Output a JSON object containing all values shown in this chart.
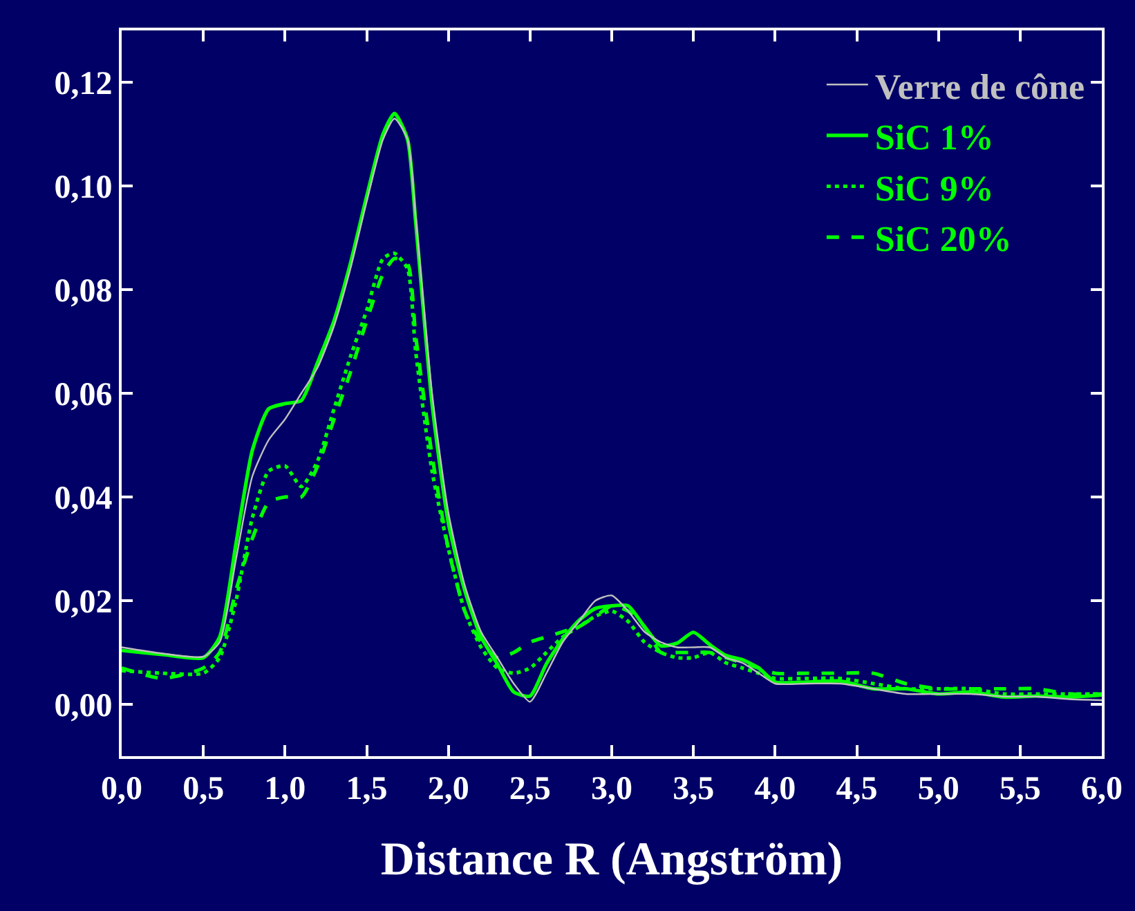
{
  "chart_data": {
    "type": "line",
    "xlabel": "Distance R (Angström)",
    "xlim": [
      0,
      6
    ],
    "ylim": [
      -0.01,
      0.13
    ],
    "xticks": [
      {
        "value": 0,
        "label": "0,0"
      },
      {
        "value": 0.5,
        "label": "0,5"
      },
      {
        "value": 1,
        "label": "1,0"
      },
      {
        "value": 1.5,
        "label": "1,5"
      },
      {
        "value": 2,
        "label": "2,0"
      },
      {
        "value": 2.5,
        "label": "2,5"
      },
      {
        "value": 3,
        "label": "3,0"
      },
      {
        "value": 3.5,
        "label": "3,5"
      },
      {
        "value": 4,
        "label": "4,0"
      },
      {
        "value": 4.5,
        "label": "4,5"
      },
      {
        "value": 5,
        "label": "5,0"
      },
      {
        "value": 5.5,
        "label": "5,5"
      },
      {
        "value": 6,
        "label": "6,0"
      }
    ],
    "yticks": [
      {
        "value": 0,
        "label": "0,00"
      },
      {
        "value": 0.02,
        "label": "0,02"
      },
      {
        "value": 0.04,
        "label": "0,04"
      },
      {
        "value": 0.06,
        "label": "0,06"
      },
      {
        "value": 0.08,
        "label": "0,08"
      },
      {
        "value": 0.1,
        "label": "0,10"
      },
      {
        "value": 0.12,
        "label": "0,12"
      }
    ],
    "grid": false,
    "legend": "top right",
    "marker": "none",
    "x": [
      0,
      0.25,
      0.5,
      0.6,
      0.7,
      0.8,
      0.9,
      1.0,
      1.1,
      1.2,
      1.3,
      1.4,
      1.5,
      1.6,
      1.67,
      1.75,
      1.8,
      1.9,
      2.0,
      2.1,
      2.2,
      2.3,
      2.4,
      2.5,
      2.6,
      2.7,
      2.8,
      2.9,
      3.0,
      3.1,
      3.2,
      3.3,
      3.4,
      3.5,
      3.6,
      3.7,
      3.8,
      3.9,
      4.0,
      4.2,
      4.4,
      4.6,
      4.8,
      5.0,
      5.2,
      5.4,
      5.6,
      5.8,
      6.0
    ],
    "series": [
      {
        "name": "Verre de cône",
        "color": "#c0c0c0",
        "line_style": "solid",
        "values": [
          0.011,
          0.0098,
          0.0092,
          0.012,
          0.028,
          0.044,
          0.051,
          0.055,
          0.06,
          0.065,
          0.073,
          0.084,
          0.097,
          0.109,
          0.113,
          0.109,
          0.094,
          0.06,
          0.037,
          0.023,
          0.014,
          0.009,
          0.004,
          0.0005,
          0.006,
          0.012,
          0.016,
          0.02,
          0.021,
          0.018,
          0.014,
          0.012,
          0.011,
          0.011,
          0.011,
          0.009,
          0.008,
          0.006,
          0.004,
          0.004,
          0.004,
          0.003,
          0.002,
          0.002,
          0.002,
          0.0015,
          0.0015,
          0.001,
          0.0008
        ]
      },
      {
        "name": "SiC 1%",
        "color": "#00ff00",
        "line_style": "solid",
        "values": [
          0.0104,
          0.0096,
          0.009,
          0.013,
          0.031,
          0.049,
          0.057,
          0.058,
          0.0586,
          0.066,
          0.074,
          0.085,
          0.098,
          0.11,
          0.114,
          0.109,
          0.093,
          0.058,
          0.035,
          0.022,
          0.013,
          0.0078,
          0.0024,
          0.0016,
          0.0078,
          0.0126,
          0.0162,
          0.0185,
          0.019,
          0.019,
          0.015,
          0.0113,
          0.0118,
          0.0139,
          0.0115,
          0.0094,
          0.0086,
          0.007,
          0.0043,
          0.0043,
          0.0045,
          0.003,
          0.003,
          0.002,
          0.0024,
          0.0014,
          0.0016,
          0.0014,
          0.0018
        ]
      },
      {
        "name": "SiC 9%",
        "color": "#00ff00",
        "line_style": "dotted",
        "values": [
          0.0065,
          0.006,
          0.006,
          0.009,
          0.02,
          0.036,
          0.045,
          0.046,
          0.042,
          0.047,
          0.057,
          0.067,
          0.076,
          0.086,
          0.087,
          0.084,
          0.068,
          0.045,
          0.03,
          0.018,
          0.011,
          0.007,
          0.006,
          0.007,
          0.01,
          0.013,
          0.015,
          0.017,
          0.018,
          0.016,
          0.012,
          0.01,
          0.009,
          0.009,
          0.01,
          0.008,
          0.007,
          0.006,
          0.005,
          0.005,
          0.005,
          0.004,
          0.003,
          0.003,
          0.003,
          0.002,
          0.002,
          0.002,
          0.002
        ]
      },
      {
        "name": "SiC 20%",
        "color": "#00ff00",
        "line_style": "dashed",
        "values": [
          0.007,
          0.005,
          0.007,
          0.01,
          0.022,
          0.032,
          0.039,
          0.04,
          0.04,
          0.046,
          0.055,
          0.064,
          0.074,
          0.083,
          0.086,
          0.085,
          0.071,
          0.048,
          0.03,
          0.018,
          0.012,
          0.009,
          0.01,
          0.012,
          0.013,
          0.014,
          0.015,
          0.017,
          0.019,
          0.018,
          0.015,
          0.01,
          0.01,
          0.01,
          0.01,
          0.009,
          0.008,
          0.007,
          0.006,
          0.006,
          0.006,
          0.006,
          0.004,
          0.003,
          0.003,
          0.003,
          0.003,
          0.002,
          0.002
        ]
      }
    ]
  }
}
